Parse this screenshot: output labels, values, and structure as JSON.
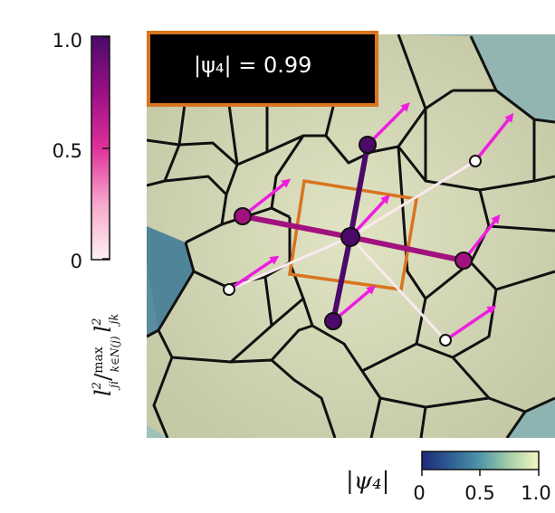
{
  "figure": {
    "badge": {
      "text": "|ψ₄| = 0.99"
    },
    "left_colorbar": {
      "ticks": [
        "1.0",
        "0.5",
        "0"
      ],
      "title_parts": {
        "main": "l",
        "sup1": "2",
        "sub1": "ji",
        "sep": "/",
        "max": "max",
        "max_sub": "k∈N(j)",
        "main2": "l",
        "sup2": "2",
        "sub2": "jk"
      },
      "colors": [
        "#fdf1f2",
        "#f7a8cb",
        "#e0309a",
        "#9b0f86",
        "#4b0a6a"
      ]
    },
    "bottom_colorbar": {
      "label": "|ψ₄|",
      "ticks": [
        "0",
        "0.5",
        "1.0"
      ],
      "colors": [
        "#1d2a78",
        "#2f5f95",
        "#4f97a9",
        "#a7cfa7",
        "#f4f7c2"
      ]
    },
    "colors": {
      "cell_fill": "#d4d7b6",
      "cell_dark": "#4d8098",
      "edge": "#111111",
      "square": "#d9741f",
      "arrow": "#ee1ee0",
      "badge_bg": "#000000",
      "badge_border": "#d9741f",
      "bond_dark": "#4b0a6a",
      "bond_mid": "#a2127f",
      "bond_light": "#fbe9ef"
    }
  }
}
